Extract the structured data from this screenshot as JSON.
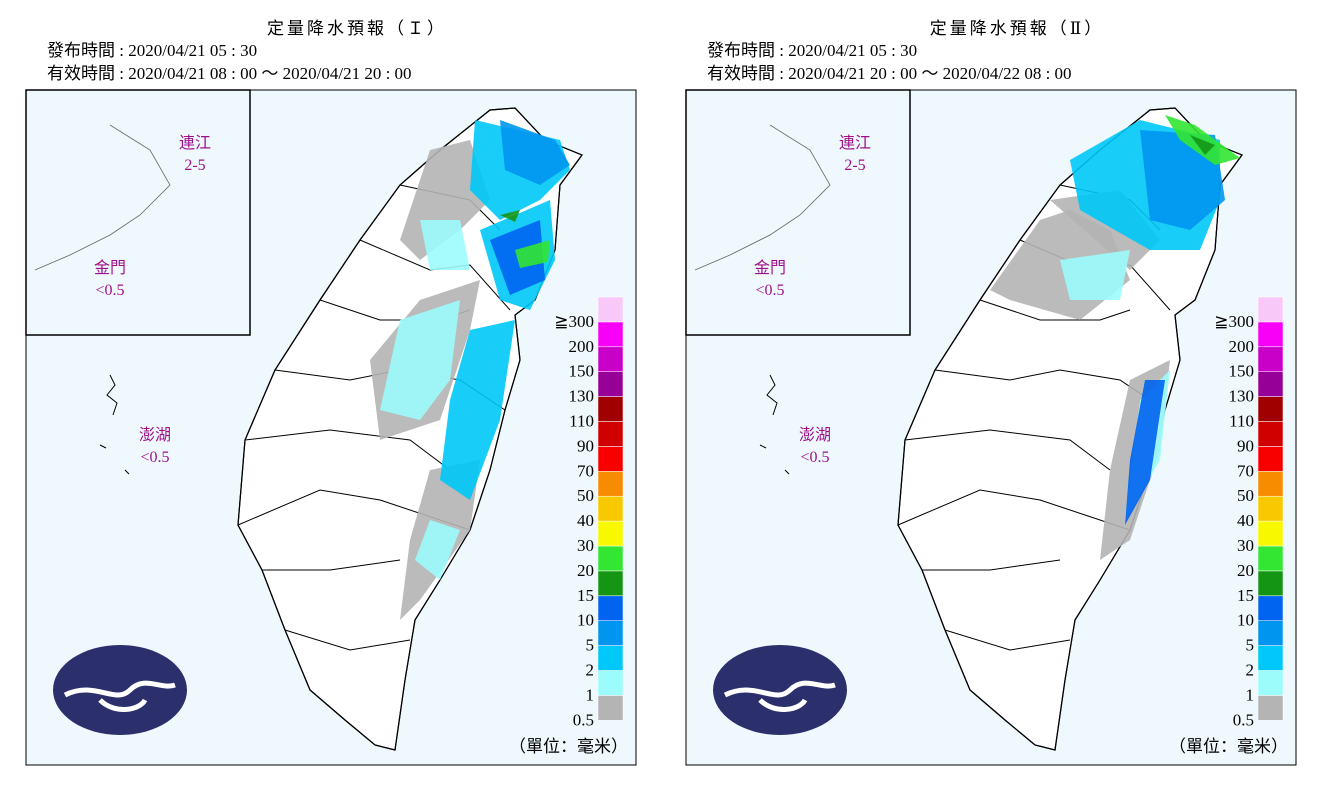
{
  "panels": [
    {
      "title": "定量降水預報（Ｉ）",
      "issued": "發布時間 : 2020/04/21 05 : 30",
      "valid": "有效時間 : 2020/04/21 08 : 00 ～ 2020/04/21 20 : 00",
      "islands": [
        {
          "name": "連江",
          "value": "2-5"
        },
        {
          "name": "金門",
          "value": "<0.5"
        },
        {
          "name": "澎湖",
          "value": "<0.5"
        }
      ]
    },
    {
      "title": "定量降水預報（Ⅱ）",
      "issued": "發布時間 : 2020/04/21 05 : 30",
      "valid": "有效時間 : 2020/04/21 20 : 00 ～ 2020/04/22 08 : 00",
      "islands": [
        {
          "name": "連江",
          "value": "2-5"
        },
        {
          "name": "金門",
          "value": "<0.5"
        },
        {
          "name": "澎湖",
          "value": "<0.5"
        }
      ]
    }
  ],
  "legend": {
    "labels": [
      "0.5",
      "1",
      "2",
      "5",
      "10",
      "15",
      "20",
      "30",
      "40",
      "50",
      "70",
      "90",
      "110",
      "130",
      "150",
      "200",
      "≧300"
    ],
    "colors": [
      "#b4b4b4",
      "#9cfcfc",
      "#00c8f8",
      "#0096f0",
      "#0064f0",
      "#149614",
      "#32e632",
      "#f8f800",
      "#f8c800",
      "#f88c00",
      "#f80000",
      "#d00000",
      "#a00000",
      "#960096",
      "#c800c8",
      "#f800f8",
      "#f8c8f8"
    ],
    "unit": "（單位：毫米）"
  }
}
